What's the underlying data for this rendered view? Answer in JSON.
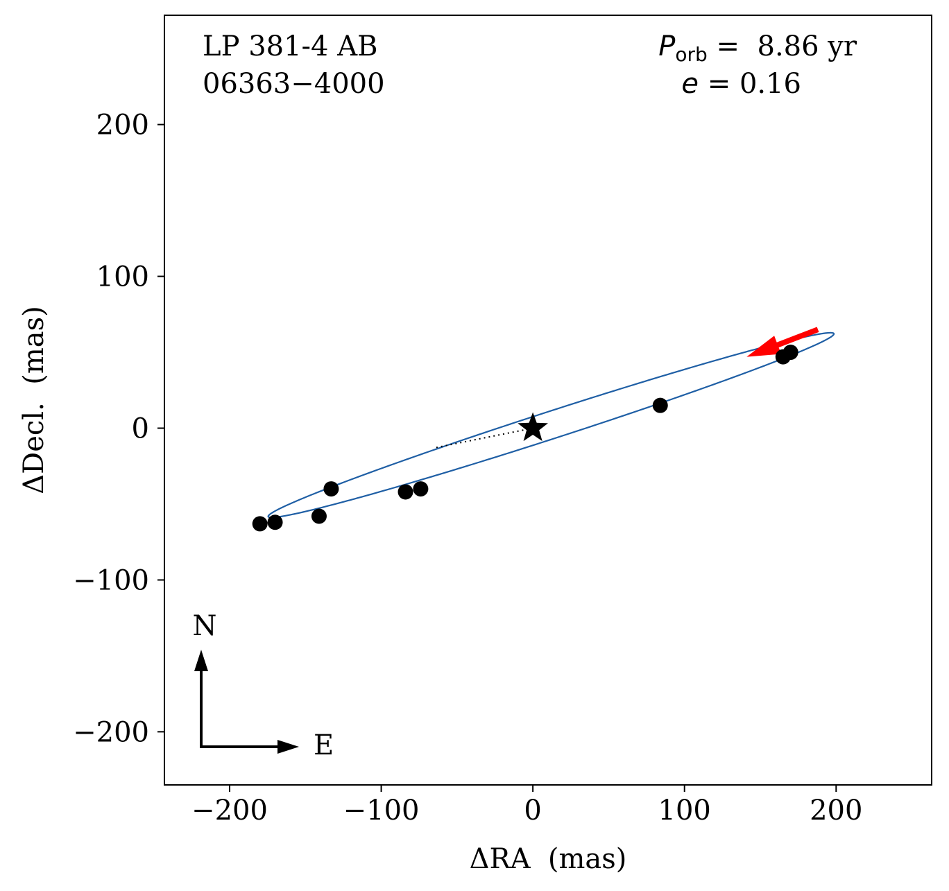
{
  "chart_data": {
    "type": "scatter",
    "title_lines": [
      "LP 381-4 AB",
      "06363−4000"
    ],
    "period": {
      "symbol": "P",
      "subscript": "orb",
      "equals": " =  ",
      "value": "8.86 yr"
    },
    "eccentricity": {
      "symbol": "e",
      "equals": " = ",
      "value": "0.16"
    },
    "xlabel": "ΔRA  (mas)",
    "ylabel": "ΔDecl.  (mas)",
    "xlim": [
      -243,
      263
    ],
    "ylim": [
      -235,
      272
    ],
    "xticks": [
      -200,
      -100,
      0,
      100,
      200
    ],
    "yticks": [
      -200,
      -100,
      0,
      100,
      200
    ],
    "xtick_labels": [
      "−200",
      "−100",
      "0",
      "100",
      "200"
    ],
    "ytick_labels": [
      "−200",
      "−100",
      "0",
      "100",
      "200"
    ],
    "orbit": {
      "color": "#1f5fa5",
      "center": [
        12,
        2
      ],
      "semi_major": 196,
      "semi_minor": 9,
      "angle_deg": 17.9
    },
    "points": [
      {
        "x": 170,
        "y": 50
      },
      {
        "x": 165,
        "y": 47
      },
      {
        "x": 84,
        "y": 15
      },
      {
        "x": -74,
        "y": -40
      },
      {
        "x": -84,
        "y": -42
      },
      {
        "x": -133,
        "y": -40
      },
      {
        "x": -141,
        "y": -58
      },
      {
        "x": -170,
        "y": -62
      },
      {
        "x": -180,
        "y": -63
      }
    ],
    "primary_star": {
      "x": 0,
      "y": 0
    },
    "periastron_line": {
      "from": [
        0,
        0
      ],
      "to": [
        -65,
        -13
      ]
    },
    "motion_arrow": {
      "from": [
        188,
        65
      ],
      "to": [
        141,
        47
      ],
      "color": "#ff0000"
    },
    "compass": {
      "north_label": "N",
      "east_label": "E"
    }
  }
}
